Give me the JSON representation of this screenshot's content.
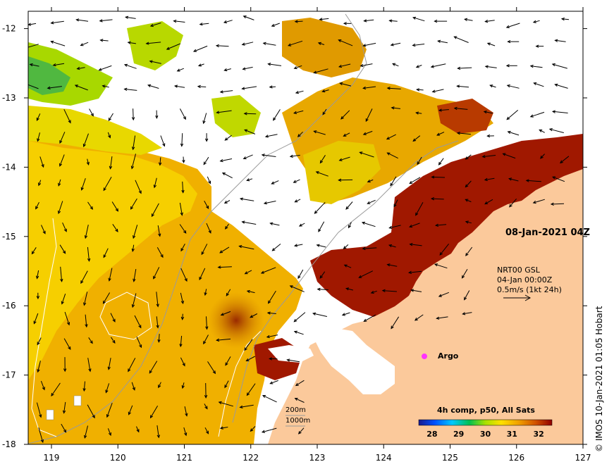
{
  "map": {
    "date_label": "08-Jan-2021 04Z",
    "current_info": {
      "line1": "NRT00 GSL",
      "line2": "04-Jan 00:00Z",
      "line3": "0.5m/s (1kt 24h)"
    },
    "argo_label": "Argo",
    "contour_labels": [
      "200m",
      "1000m"
    ],
    "lon_ticks": [
      "119",
      "120",
      "121",
      "122",
      "123",
      "124",
      "125",
      "126",
      "127"
    ],
    "lat_ticks": [
      "-12",
      "-13",
      "-14",
      "-15",
      "-16",
      "-17",
      "-18"
    ],
    "lon_range": [
      118.65,
      127
    ],
    "lat_range": [
      -11.75,
      -18
    ],
    "colorbar": {
      "title": "4h comp, p50, All Sats",
      "ticks": [
        "28",
        "29",
        "30",
        "31",
        "32"
      ],
      "range": [
        27.5,
        32.5
      ],
      "colors": [
        "#1a1a8c",
        "#0050ff",
        "#00c8ff",
        "#00c050",
        "#a8e000",
        "#ffe000",
        "#f0a000",
        "#d05000",
        "#900000"
      ]
    },
    "credit": "© IMOS 10-Jan-2021 01:05 Hobart",
    "colors": {
      "land": "#fbc99b",
      "no_data": "#ffffff",
      "argo": "#ff33ff"
    }
  }
}
